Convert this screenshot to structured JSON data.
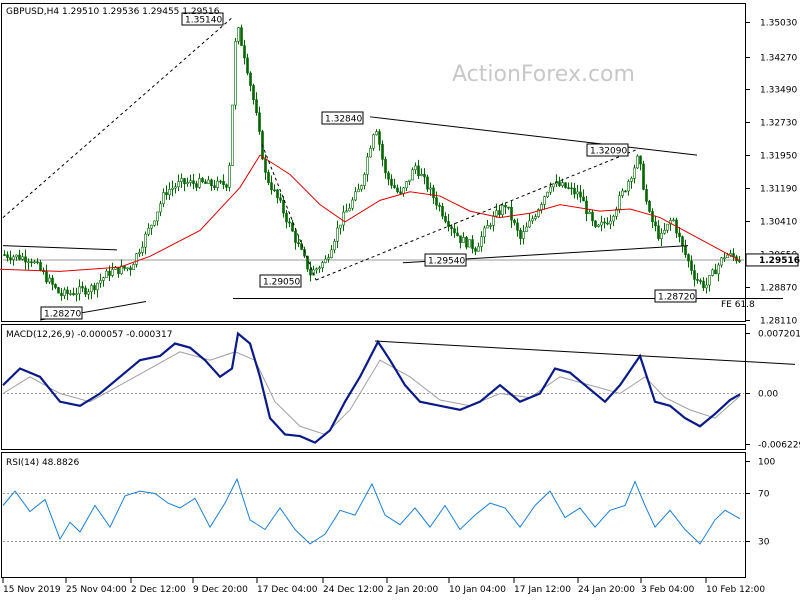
{
  "chart_data": [
    {
      "type": "candlestick",
      "header": "GBPUSD,H4  1.29510 1.29536 1.29455 1.29516",
      "watermark": "ActionForex.com",
      "price_ticks": [
        "1.35030",
        "1.34270",
        "1.33490",
        "1.32730",
        "1.31950",
        "1.31190",
        "1.30410",
        "1.29650",
        "1.28870",
        "1.28110"
      ],
      "ylim": [
        1.2811,
        1.3503
      ],
      "last_price": "1.29516",
      "price_labels": [
        "1.35140",
        "1.32840",
        "1.32090",
        "1.29540",
        "1.29050",
        "1.28720",
        "1.28270"
      ],
      "fib_label": "FE 61.8",
      "close_path": [
        [
          0,
          1.2965
        ],
        [
          30,
          1.2955
        ],
        [
          60,
          1.287
        ],
        [
          90,
          1.2885
        ],
        [
          110,
          1.2925
        ],
        [
          130,
          1.2935
        ],
        [
          150,
          1.303
        ],
        [
          165,
          1.311
        ],
        [
          180,
          1.313
        ],
        [
          200,
          1.313
        ],
        [
          215,
          1.3125
        ],
        [
          228,
          1.313
        ],
        [
          236,
          1.35
        ],
        [
          245,
          1.342
        ],
        [
          255,
          1.33
        ],
        [
          265,
          1.315
        ],
        [
          280,
          1.308
        ],
        [
          295,
          1.3
        ],
        [
          310,
          1.292
        ],
        [
          325,
          1.295
        ],
        [
          340,
          1.304
        ],
        [
          360,
          1.312
        ],
        [
          375,
          1.327
        ],
        [
          385,
          1.315
        ],
        [
          400,
          1.31
        ],
        [
          415,
          1.317
        ],
        [
          430,
          1.311
        ],
        [
          445,
          1.305
        ],
        [
          460,
          1.3
        ],
        [
          475,
          1.298
        ],
        [
          490,
          1.304
        ],
        [
          505,
          1.308
        ],
        [
          520,
          1.3
        ],
        [
          535,
          1.306
        ],
        [
          550,
          1.313
        ],
        [
          565,
          1.312
        ],
        [
          580,
          1.31
        ],
        [
          595,
          1.302
        ],
        [
          610,
          1.305
        ],
        [
          625,
          1.312
        ],
        [
          638,
          1.319
        ],
        [
          648,
          1.306
        ],
        [
          660,
          1.3
        ],
        [
          672,
          1.305
        ],
        [
          682,
          1.298
        ],
        [
          695,
          1.291
        ],
        [
          705,
          1.289
        ],
        [
          715,
          1.293
        ],
        [
          725,
          1.2965
        ],
        [
          740,
          1.2952
        ]
      ],
      "ma_path": [
        [
          0,
          1.293
        ],
        [
          60,
          1.2925
        ],
        [
          120,
          1.2935
        ],
        [
          150,
          1.296
        ],
        [
          200,
          1.302
        ],
        [
          240,
          1.312
        ],
        [
          260,
          1.3195
        ],
        [
          290,
          1.315
        ],
        [
          320,
          1.308
        ],
        [
          345,
          1.304
        ],
        [
          380,
          1.309
        ],
        [
          410,
          1.311
        ],
        [
          440,
          1.31
        ],
        [
          470,
          1.3065
        ],
        [
          500,
          1.305
        ],
        [
          530,
          1.306
        ],
        [
          560,
          1.308
        ],
        [
          600,
          1.3065
        ],
        [
          630,
          1.307
        ],
        [
          660,
          1.305
        ],
        [
          700,
          1.3
        ],
        [
          740,
          1.295
        ]
      ],
      "channel_lines": [
        [
          [
            3,
            1.2985
          ],
          [
            117,
            1.2975
          ]
        ],
        [
          [
            40,
            1.2812
          ],
          [
            146,
            1.2855
          ]
        ],
        [
          [
            370,
            1.3284
          ],
          [
            697,
            1.3195
          ]
        ],
        [
          [
            403,
            1.2945
          ],
          [
            688,
            1.2985
          ]
        ],
        [
          [
            233,
            1.2862
          ],
          [
            783,
            1.2862
          ]
        ]
      ],
      "dashed_lines": [
        [
          [
            3,
            1.305
          ],
          [
            232,
            1.3514
          ]
        ],
        [
          [
            262,
            1.322
          ],
          [
            316,
            1.2905
          ]
        ],
        [
          [
            316,
            1.2905
          ],
          [
            638,
            1.3209
          ]
        ]
      ]
    },
    {
      "type": "line",
      "label": "MACD(12,26,9) -0.000057 -0.000317",
      "ticks": [
        "0.007201",
        "0.00",
        "-0.006229"
      ],
      "ylim": [
        -0.006229,
        0.007201
      ],
      "macd_path": [
        [
          3,
          0.001
        ],
        [
          20,
          0.003
        ],
        [
          40,
          0.002
        ],
        [
          60,
          -0.001
        ],
        [
          80,
          -0.0015
        ],
        [
          100,
          0.0
        ],
        [
          120,
          0.002
        ],
        [
          140,
          0.004
        ],
        [
          160,
          0.0045
        ],
        [
          175,
          0.006
        ],
        [
          190,
          0.0055
        ],
        [
          205,
          0.004
        ],
        [
          220,
          0.002
        ],
        [
          232,
          0.003
        ],
        [
          238,
          0.0072
        ],
        [
          250,
          0.006
        ],
        [
          260,
          0.002
        ],
        [
          270,
          -0.003
        ],
        [
          285,
          -0.005
        ],
        [
          300,
          -0.0052
        ],
        [
          315,
          -0.006
        ],
        [
          330,
          -0.0045
        ],
        [
          345,
          -0.001
        ],
        [
          360,
          0.002
        ],
        [
          378,
          0.0062
        ],
        [
          390,
          0.004
        ],
        [
          405,
          0.001
        ],
        [
          420,
          -0.001
        ],
        [
          440,
          -0.0015
        ],
        [
          460,
          -0.002
        ],
        [
          480,
          -0.001
        ],
        [
          500,
          0.001
        ],
        [
          520,
          -0.001
        ],
        [
          540,
          0.0
        ],
        [
          555,
          0.003
        ],
        [
          570,
          0.0025
        ],
        [
          590,
          0.0005
        ],
        [
          605,
          -0.001
        ],
        [
          620,
          0.001
        ],
        [
          640,
          0.0045
        ],
        [
          655,
          -0.001
        ],
        [
          670,
          -0.0015
        ],
        [
          685,
          -0.003
        ],
        [
          700,
          -0.004
        ],
        [
          715,
          -0.0025
        ],
        [
          730,
          -0.0008
        ],
        [
          740,
          -0.0001
        ]
      ],
      "signal_path": [
        [
          3,
          0.0
        ],
        [
          30,
          0.002
        ],
        [
          60,
          0.0
        ],
        [
          90,
          -0.001
        ],
        [
          120,
          0.001
        ],
        [
          150,
          0.003
        ],
        [
          180,
          0.005
        ],
        [
          210,
          0.004
        ],
        [
          235,
          0.005
        ],
        [
          255,
          0.004
        ],
        [
          275,
          -0.001
        ],
        [
          300,
          -0.004
        ],
        [
          325,
          -0.005
        ],
        [
          350,
          -0.002
        ],
        [
          380,
          0.004
        ],
        [
          410,
          0.002
        ],
        [
          440,
          -0.0008
        ],
        [
          470,
          -0.0015
        ],
        [
          500,
          0.0
        ],
        [
          530,
          -0.0005
        ],
        [
          560,
          0.002
        ],
        [
          590,
          0.001
        ],
        [
          620,
          0.0
        ],
        [
          645,
          0.002
        ],
        [
          665,
          -0.0005
        ],
        [
          690,
          -0.002
        ],
        [
          715,
          -0.003
        ],
        [
          740,
          -0.0003
        ]
      ],
      "trend_line": [
        [
          375,
          0.0063
        ],
        [
          795,
          0.0035
        ]
      ]
    },
    {
      "type": "line",
      "label": "RSI(14) 48.8826",
      "ticks": [
        "100",
        "70",
        "30"
      ],
      "ylim": [
        0,
        100
      ],
      "rsi_path": [
        [
          3,
          60
        ],
        [
          15,
          72
        ],
        [
          30,
          55
        ],
        [
          45,
          65
        ],
        [
          60,
          32
        ],
        [
          70,
          46
        ],
        [
          80,
          38
        ],
        [
          95,
          60
        ],
        [
          110,
          42
        ],
        [
          125,
          68
        ],
        [
          140,
          72
        ],
        [
          155,
          70
        ],
        [
          168,
          62
        ],
        [
          180,
          58
        ],
        [
          195,
          66
        ],
        [
          210,
          42
        ],
        [
          225,
          62
        ],
        [
          237,
          82
        ],
        [
          250,
          48
        ],
        [
          265,
          40
        ],
        [
          280,
          58
        ],
        [
          295,
          40
        ],
        [
          310,
          28
        ],
        [
          325,
          36
        ],
        [
          340,
          56
        ],
        [
          355,
          52
        ],
        [
          372,
          78
        ],
        [
          385,
          52
        ],
        [
          400,
          44
        ],
        [
          415,
          58
        ],
        [
          430,
          42
        ],
        [
          445,
          60
        ],
        [
          460,
          40
        ],
        [
          475,
          52
        ],
        [
          490,
          62
        ],
        [
          505,
          58
        ],
        [
          520,
          42
        ],
        [
          535,
          60
        ],
        [
          550,
          72
        ],
        [
          565,
          50
        ],
        [
          580,
          58
        ],
        [
          595,
          42
        ],
        [
          610,
          56
        ],
        [
          625,
          60
        ],
        [
          635,
          80
        ],
        [
          645,
          60
        ],
        [
          655,
          42
        ],
        [
          670,
          56
        ],
        [
          685,
          40
        ],
        [
          700,
          28
        ],
        [
          715,
          48
        ],
        [
          725,
          56
        ],
        [
          740,
          49
        ]
      ]
    }
  ],
  "x_axis_labels": [
    "15 Nov 2019",
    "25 Nov 04:00",
    "2 Dec 12:00",
    "9 Dec 20:00",
    "17 Dec 04:00",
    "24 Dec 12:00",
    "2 Jan 20:00",
    "10 Jan 04:00",
    "17 Jan 12:00",
    "24 Jan 20:00",
    "3 Feb 04:00",
    "10 Feb 12:00"
  ]
}
